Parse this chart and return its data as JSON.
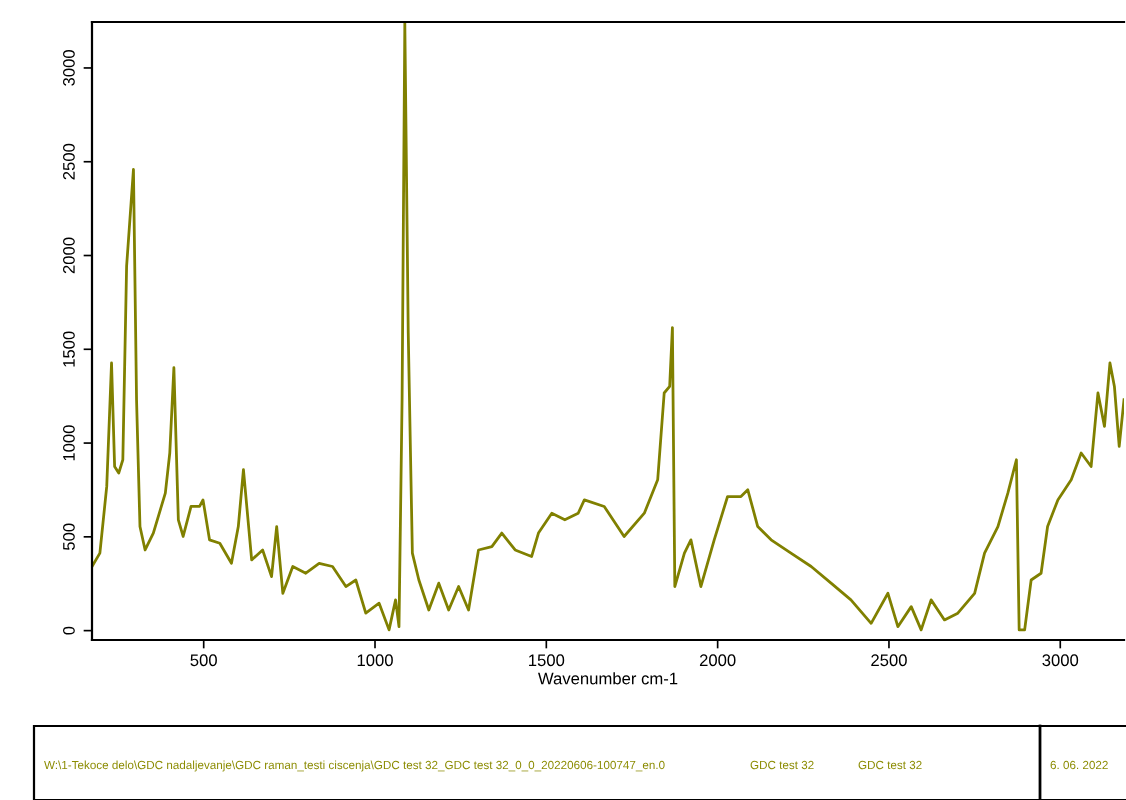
{
  "chart_data": {
    "type": "line",
    "xlabel": "Wavenumber cm-1",
    "xlim": [
      174,
      3186
    ],
    "xticks": [
      500,
      1000,
      1500,
      2000,
      2500,
      3000
    ],
    "ylim": [
      -50,
      3245
    ],
    "yticks": [
      0,
      500,
      1000,
      1500,
      2000,
      2500,
      3000
    ],
    "grid": false,
    "legend": false,
    "marker": "none",
    "line_style": "solid",
    "series": [
      {
        "color": "#808000",
        "x": [
          174,
          197,
          217,
          231,
          240,
          252,
          264,
          275,
          295,
          304,
          314,
          329,
          353,
          388,
          401,
          413,
          426,
          440,
          463,
          488,
          498,
          517,
          547,
          581,
          601,
          616,
          640,
          672,
          698,
          713,
          731,
          760,
          798,
          837,
          876,
          915,
          944,
          973,
          1012,
          1041,
          1060,
          1070,
          1079,
          1087,
          1097,
          1109,
          1128,
          1157,
          1186,
          1215,
          1244,
          1273,
          1302,
          1341,
          1370,
          1409,
          1457,
          1477,
          1516,
          1554,
          1593,
          1611,
          1669,
          1727,
          1786,
          1825,
          1844,
          1860,
          1868,
          1875,
          1903,
          1922,
          1951,
          1990,
          2029,
          2068,
          2088,
          2117,
          2156,
          2214,
          2273,
          2331,
          2389,
          2448,
          2497,
          2526,
          2565,
          2594,
          2623,
          2662,
          2701,
          2750,
          2779,
          2818,
          2847,
          2872,
          2880,
          2896,
          2915,
          2944,
          2963,
          2993,
          3032,
          3061,
          3090,
          3110,
          3129,
          3145,
          3158,
          3172,
          3186
        ],
        "values": [
          342,
          413,
          769,
          1427,
          875,
          840,
          911,
          1943,
          2459,
          1231,
          555,
          430,
          520,
          733,
          947,
          1402,
          591,
          502,
          662,
          662,
          697,
          484,
          466,
          359,
          555,
          858,
          377,
          430,
          288,
          555,
          199,
          342,
          306,
          359,
          342,
          235,
          270,
          93,
          146,
          4,
          164,
          21,
          1231,
          3240,
          1587,
          413,
          270,
          110,
          253,
          110,
          235,
          110,
          430,
          448,
          520,
          430,
          395,
          520,
          626,
          591,
          626,
          697,
          662,
          502,
          626,
          804,
          1267,
          1302,
          1616,
          235,
          413,
          484,
          235,
          484,
          715,
          715,
          751,
          555,
          484,
          413,
          342,
          253,
          164,
          39,
          199,
          21,
          128,
          4,
          164,
          57,
          93,
          199,
          413,
          555,
          733,
          911,
          4,
          4,
          270,
          306,
          555,
          697,
          804,
          947,
          875,
          1267,
          1089,
          1427,
          1302,
          982,
          1231
        ]
      }
    ],
    "annotations": [
      "W:\\1-Tekoce delo\\GDC nadaljevanje\\GDC raman_testi ciscenja\\GDC test 32_GDC test 32_0_0_20220606-100747_en.0",
      "GDC test 32",
      "GDC test 32",
      "6. 06. 2022"
    ]
  }
}
